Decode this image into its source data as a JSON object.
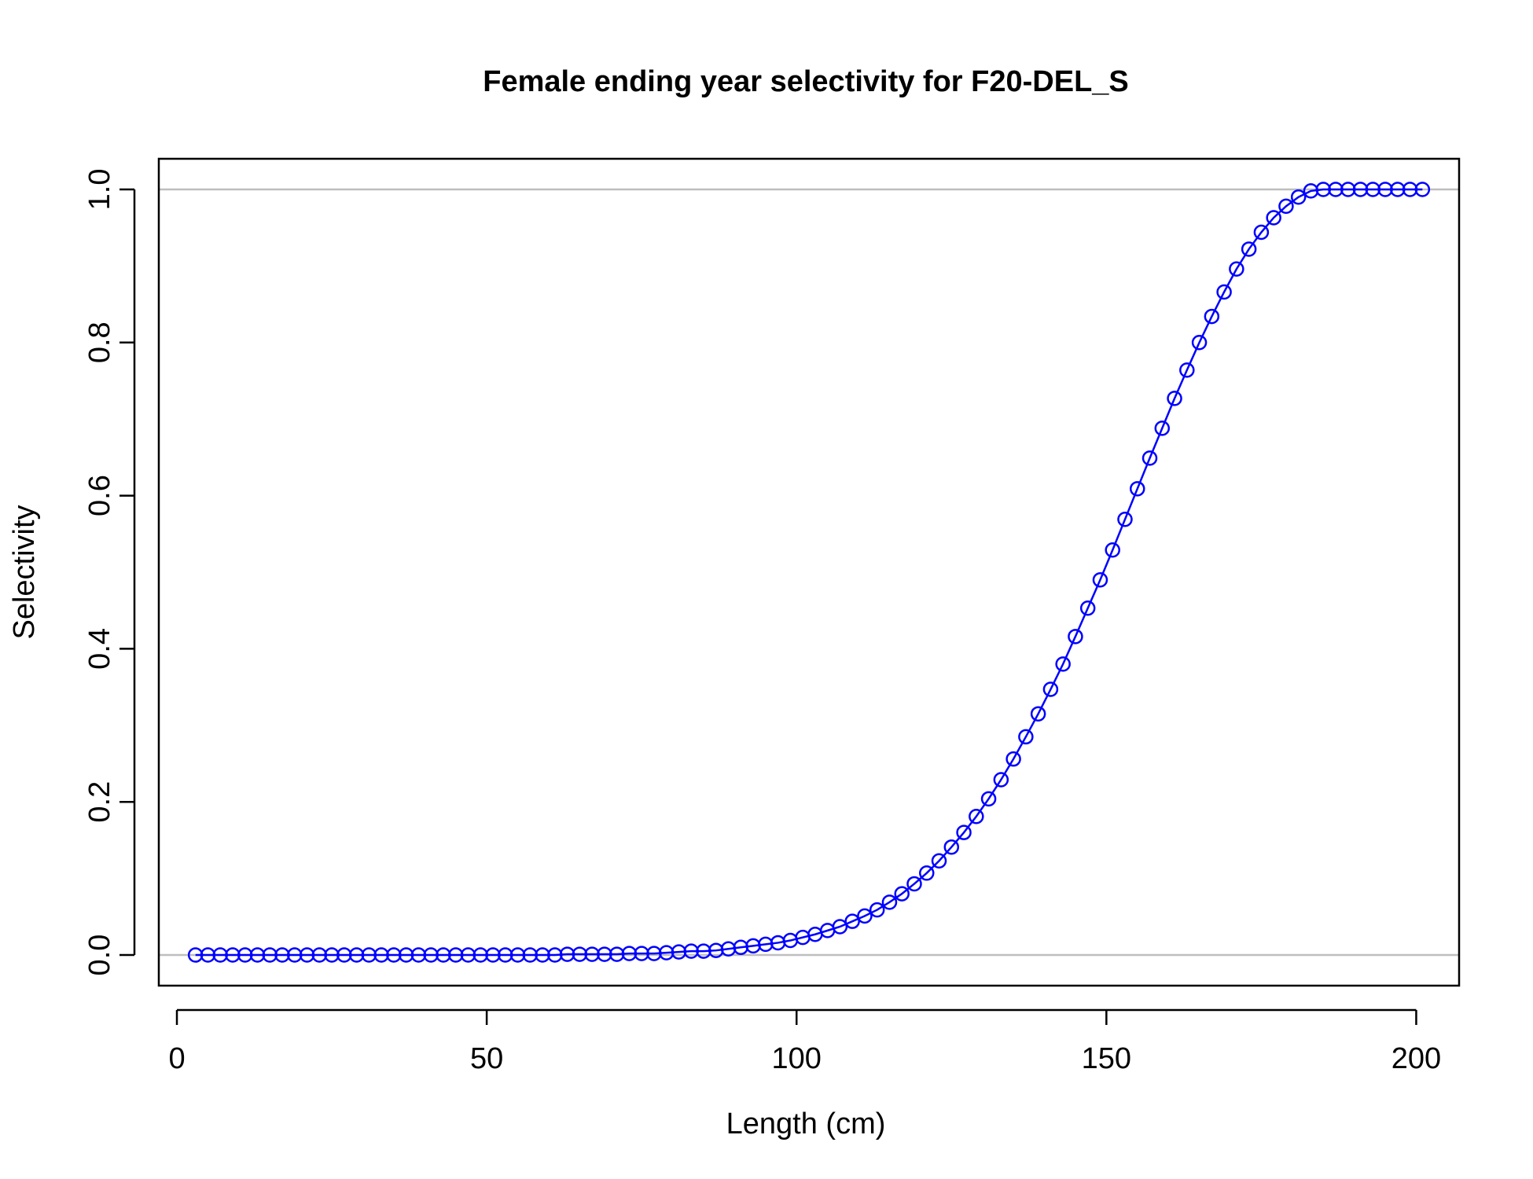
{
  "chart_data": {
    "type": "line",
    "title": "Female ending year selectivity for F20-DEL_S",
    "xlabel": "Length (cm)",
    "ylabel": "Selectivity",
    "xlim": [
      -2.92,
      206.92
    ],
    "ylim": [
      -0.04,
      1.04
    ],
    "xticks": [
      0,
      50,
      100,
      150,
      200
    ],
    "xtick_labels": [
      "0",
      "50",
      "100",
      "150",
      "200"
    ],
    "yticks": [
      0,
      0.2,
      0.4,
      0.6,
      0.8,
      1.0
    ],
    "ytick_labels": [
      "0.0",
      "0.2",
      "0.4",
      "0.6",
      "0.8",
      "1.0"
    ],
    "reference_lines": [
      0,
      1
    ],
    "reference_line_color": "#bebebe",
    "series_color": "#0000ff",
    "markers": "open-circle",
    "grid": false,
    "series": [
      {
        "x": [
          3,
          5,
          7,
          9,
          11,
          13,
          15,
          17,
          19,
          21,
          23,
          25,
          27,
          29,
          31,
          33,
          35,
          37,
          39,
          41,
          43,
          45,
          47,
          49,
          51,
          53,
          55,
          57,
          59,
          61,
          63,
          65,
          67,
          69,
          71,
          73,
          75,
          77,
          79,
          81,
          83,
          85,
          87,
          89,
          91,
          93,
          95,
          97,
          99,
          101,
          103,
          105,
          107,
          109,
          111,
          113,
          115,
          117,
          119,
          121,
          123,
          125,
          127,
          129,
          131,
          133,
          135,
          137,
          139,
          141,
          143,
          145,
          147,
          149,
          151,
          153,
          155,
          157,
          159,
          161,
          163,
          165,
          167,
          169,
          171,
          173,
          175,
          177,
          179,
          181,
          183,
          185,
          187,
          189,
          191,
          193,
          195,
          197,
          199,
          201
        ],
        "values": [
          0,
          0,
          0,
          0,
          0,
          0,
          0,
          0,
          0,
          0,
          0,
          0,
          0,
          0,
          0,
          0,
          0,
          0,
          0,
          0,
          0,
          0,
          0,
          0,
          0,
          0,
          0,
          0,
          0,
          0,
          0.001,
          0.001,
          0.001,
          0.001,
          0.001,
          0.002,
          0.002,
          0.002,
          0.003,
          0.004,
          0.005,
          0.005,
          0.006,
          0.008,
          0.01,
          0.012,
          0.014,
          0.016,
          0.019,
          0.023,
          0.027,
          0.032,
          0.037,
          0.044,
          0.051,
          0.059,
          0.069,
          0.08,
          0.093,
          0.107,
          0.123,
          0.141,
          0.16,
          0.181,
          0.204,
          0.229,
          0.256,
          0.285,
          0.315,
          0.347,
          0.38,
          0.416,
          0.453,
          0.49,
          0.529,
          0.569,
          0.609,
          0.649,
          0.688,
          0.727,
          0.764,
          0.8,
          0.834,
          0.866,
          0.896,
          0.922,
          0.944,
          0.963,
          0.978,
          0.99,
          0.998,
          1.0,
          1.0,
          1.0,
          1.0,
          1.0,
          1.0,
          1.0,
          1.0,
          1.0
        ]
      }
    ]
  }
}
